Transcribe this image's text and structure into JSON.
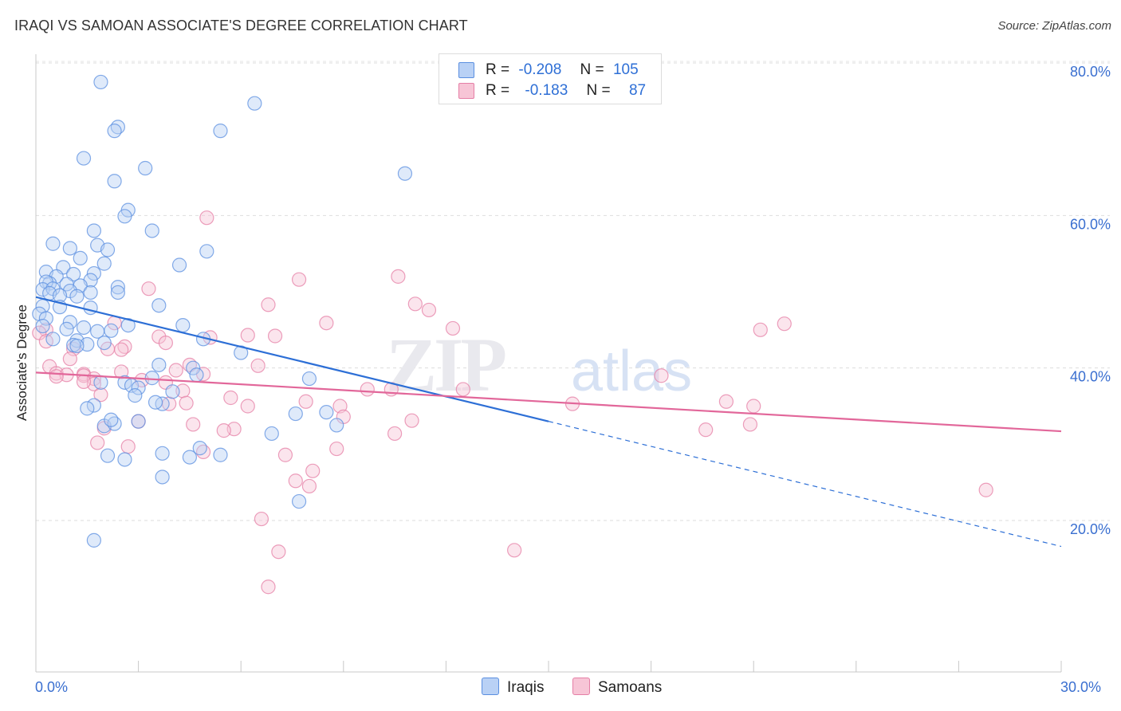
{
  "title": "IRAQI VS SAMOAN ASSOCIATE'S DEGREE CORRELATION CHART",
  "source": "Source: ZipAtlas.com",
  "watermark": {
    "zip": "ZIP",
    "atlas": "atlas"
  },
  "legend": {
    "rows": [
      {
        "r_label": "R =",
        "r_value": "-0.208",
        "n_label": "N =",
        "n_value": "105",
        "color": "#5b8fe0",
        "fill": "#b9d1f5"
      },
      {
        "r_label": "R =",
        "r_value": "-0.183",
        "n_label": "N =",
        "n_value": "87",
        "color": "#e57fa6",
        "fill": "#f7c5d6"
      }
    ]
  },
  "bottom_legend": [
    "Iraqis",
    "Samoans"
  ],
  "chart_data": {
    "type": "scatter",
    "title": "IRAQI VS SAMOAN ASSOCIATE'S DEGREE CORRELATION CHART",
    "xlabel": "",
    "ylabel": "Associate's Degree",
    "xlim": [
      0,
      30
    ],
    "ylim": [
      0,
      82
    ],
    "x_tick_labels": [
      "0.0%",
      "30.0%"
    ],
    "y_ticks": [
      20,
      40,
      60,
      80
    ],
    "y_tick_labels": [
      "20.0%",
      "40.0%",
      "60.0%",
      "80.0%"
    ],
    "grid": true,
    "legend_position": "top-center",
    "series": [
      {
        "name": "Iraqis",
        "color": "#5b8fe0",
        "fill": "#b9d1f5",
        "trend": {
          "x_start": 0,
          "y_start": 49.3,
          "x_solid_end": 15.0,
          "y_solid_end": 33.0,
          "x_end": 30.0,
          "y_end": 16.6
        },
        "points": [
          [
            1.9,
            77.5
          ],
          [
            2.4,
            71.6
          ],
          [
            2.3,
            71.1
          ],
          [
            6.4,
            74.7
          ],
          [
            5.4,
            71.1
          ],
          [
            1.4,
            67.5
          ],
          [
            3.2,
            66.2
          ],
          [
            10.8,
            65.5
          ],
          [
            2.3,
            64.5
          ],
          [
            2.7,
            60.7
          ],
          [
            2.6,
            59.9
          ],
          [
            3.4,
            58.0
          ],
          [
            1.7,
            58.0
          ],
          [
            0.5,
            56.3
          ],
          [
            1.0,
            55.7
          ],
          [
            1.8,
            56.1
          ],
          [
            2.1,
            55.5
          ],
          [
            5.0,
            55.3
          ],
          [
            1.3,
            54.4
          ],
          [
            2.0,
            53.7
          ],
          [
            4.2,
            53.5
          ],
          [
            0.3,
            52.6
          ],
          [
            0.8,
            53.2
          ],
          [
            1.1,
            52.3
          ],
          [
            0.6,
            52.0
          ],
          [
            1.7,
            52.4
          ],
          [
            0.4,
            51.1
          ],
          [
            0.9,
            51.0
          ],
          [
            0.3,
            51.3
          ],
          [
            1.6,
            51.5
          ],
          [
            1.3,
            50.8
          ],
          [
            0.2,
            50.3
          ],
          [
            0.5,
            50.4
          ],
          [
            0.4,
            49.8
          ],
          [
            1.0,
            50.1
          ],
          [
            1.6,
            49.9
          ],
          [
            2.4,
            50.6
          ],
          [
            2.4,
            49.9
          ],
          [
            0.7,
            49.5
          ],
          [
            1.2,
            49.4
          ],
          [
            0.2,
            48.1
          ],
          [
            0.7,
            48.0
          ],
          [
            1.6,
            47.9
          ],
          [
            3.6,
            48.2
          ],
          [
            0.1,
            47.1
          ],
          [
            0.3,
            46.5
          ],
          [
            0.2,
            45.5
          ],
          [
            1.0,
            46.0
          ],
          [
            1.4,
            45.3
          ],
          [
            0.9,
            45.1
          ],
          [
            2.2,
            44.9
          ],
          [
            1.8,
            44.8
          ],
          [
            2.7,
            45.6
          ],
          [
            4.3,
            45.6
          ],
          [
            1.2,
            43.6
          ],
          [
            1.5,
            43.1
          ],
          [
            2.0,
            43.3
          ],
          [
            4.9,
            43.8
          ],
          [
            1.1,
            43.0
          ],
          [
            1.2,
            42.9
          ],
          [
            0.5,
            43.8
          ],
          [
            6.0,
            42.0
          ],
          [
            3.6,
            40.4
          ],
          [
            4.6,
            40.0
          ],
          [
            4.7,
            39.1
          ],
          [
            3.4,
            38.7
          ],
          [
            8.0,
            38.6
          ],
          [
            1.9,
            38.1
          ],
          [
            2.6,
            38.1
          ],
          [
            2.8,
            37.7
          ],
          [
            3.0,
            37.4
          ],
          [
            4.0,
            36.9
          ],
          [
            2.9,
            36.4
          ],
          [
            3.7,
            35.3
          ],
          [
            3.5,
            35.5
          ],
          [
            1.7,
            35.1
          ],
          [
            1.5,
            34.7
          ],
          [
            7.6,
            34.0
          ],
          [
            8.5,
            34.2
          ],
          [
            2.0,
            32.4
          ],
          [
            2.3,
            32.7
          ],
          [
            2.2,
            33.2
          ],
          [
            3.0,
            33.0
          ],
          [
            6.9,
            31.4
          ],
          [
            8.8,
            32.5
          ],
          [
            4.8,
            29.5
          ],
          [
            5.4,
            28.6
          ],
          [
            2.1,
            28.5
          ],
          [
            2.6,
            28.0
          ],
          [
            3.7,
            28.8
          ],
          [
            4.5,
            28.3
          ],
          [
            3.7,
            25.7
          ],
          [
            7.7,
            22.5
          ],
          [
            1.7,
            17.4
          ]
        ]
      },
      {
        "name": "Samoans",
        "color": "#e57fa6",
        "fill": "#f7c5d6",
        "trend": {
          "x_start": 0,
          "y_start": 39.4,
          "x_end": 30.0,
          "y_end": 31.7
        },
        "points": [
          [
            5.0,
            59.7
          ],
          [
            7.7,
            51.6
          ],
          [
            10.6,
            52.0
          ],
          [
            3.3,
            50.4
          ],
          [
            6.8,
            48.3
          ],
          [
            11.1,
            48.4
          ],
          [
            11.5,
            47.6
          ],
          [
            8.5,
            45.9
          ],
          [
            12.2,
            45.2
          ],
          [
            21.2,
            45.0
          ],
          [
            21.9,
            45.8
          ],
          [
            0.3,
            45.0
          ],
          [
            2.3,
            45.9
          ],
          [
            0.1,
            44.6
          ],
          [
            6.2,
            44.3
          ],
          [
            7.0,
            44.2
          ],
          [
            5.1,
            44.0
          ],
          [
            3.6,
            44.1
          ],
          [
            0.3,
            43.5
          ],
          [
            2.6,
            42.8
          ],
          [
            3.8,
            43.3
          ],
          [
            1.1,
            42.5
          ],
          [
            2.5,
            42.4
          ],
          [
            1.0,
            41.2
          ],
          [
            2.1,
            42.5
          ],
          [
            0.4,
            40.2
          ],
          [
            6.5,
            40.3
          ],
          [
            4.5,
            40.4
          ],
          [
            4.1,
            39.7
          ],
          [
            0.6,
            39.3
          ],
          [
            0.9,
            39.1
          ],
          [
            0.6,
            38.9
          ],
          [
            2.5,
            39.5
          ],
          [
            1.4,
            39.2
          ],
          [
            1.4,
            39.0
          ],
          [
            4.9,
            39.2
          ],
          [
            1.7,
            38.6
          ],
          [
            1.7,
            37.9
          ],
          [
            1.4,
            38.2
          ],
          [
            3.1,
            38.4
          ],
          [
            3.8,
            38.1
          ],
          [
            18.3,
            39.0
          ],
          [
            9.7,
            37.2
          ],
          [
            10.4,
            37.2
          ],
          [
            12.5,
            37.2
          ],
          [
            4.3,
            37.0
          ],
          [
            1.9,
            36.5
          ],
          [
            5.7,
            36.1
          ],
          [
            7.9,
            35.6
          ],
          [
            3.9,
            35.3
          ],
          [
            6.2,
            35.0
          ],
          [
            8.9,
            35.0
          ],
          [
            15.7,
            35.3
          ],
          [
            4.4,
            35.4
          ],
          [
            20.2,
            35.6
          ],
          [
            21.0,
            35.0
          ],
          [
            9.0,
            33.6
          ],
          [
            11.0,
            33.1
          ],
          [
            3.0,
            33.0
          ],
          [
            4.6,
            32.6
          ],
          [
            5.8,
            32.0
          ],
          [
            20.9,
            32.6
          ],
          [
            10.5,
            31.4
          ],
          [
            5.5,
            31.8
          ],
          [
            19.6,
            31.9
          ],
          [
            2.0,
            32.1
          ],
          [
            1.8,
            30.2
          ],
          [
            2.7,
            29.7
          ],
          [
            4.9,
            29.0
          ],
          [
            8.8,
            29.4
          ],
          [
            7.3,
            28.6
          ],
          [
            8.1,
            26.5
          ],
          [
            7.6,
            25.2
          ],
          [
            8.0,
            24.5
          ],
          [
            27.8,
            24.0
          ],
          [
            6.6,
            20.2
          ],
          [
            14.0,
            16.1
          ],
          [
            7.1,
            15.9
          ],
          [
            6.8,
            11.3
          ]
        ]
      }
    ]
  }
}
